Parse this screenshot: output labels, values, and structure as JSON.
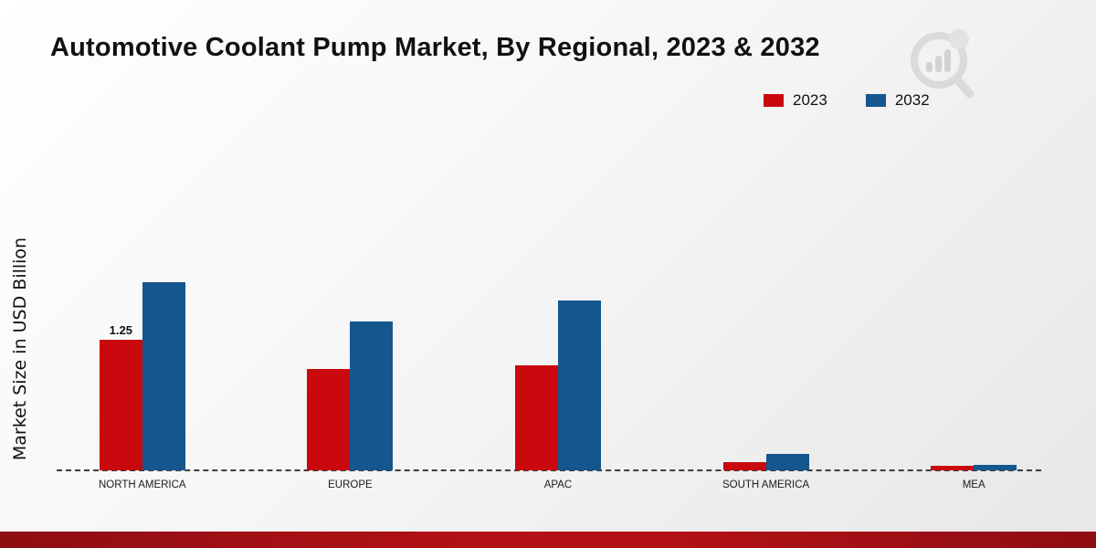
{
  "header": {
    "title": "Automotive Coolant Pump Market, By Regional, 2023 & 2032"
  },
  "legend": {
    "items": [
      {
        "label": "2023",
        "color": "#c9090e"
      },
      {
        "label": "2032",
        "color": "#15568f"
      }
    ]
  },
  "chart_data": {
    "type": "bar",
    "title": "Automotive Coolant Pump Market, By Regional, 2023 & 2032",
    "ylabel": "Market Size in USD Billion",
    "xlabel": "",
    "categories": [
      "NORTH AMERICA",
      "EUROPE",
      "APAC",
      "SOUTH AMERICA",
      "MEA"
    ],
    "series": [
      {
        "name": "2023",
        "color": "#c9090e",
        "values": [
          1.25,
          0.97,
          1.01,
          0.08,
          0.04
        ]
      },
      {
        "name": "2032",
        "color": "#15568f",
        "values": [
          1.81,
          1.43,
          1.63,
          0.16,
          0.05
        ]
      }
    ],
    "annotations": [
      {
        "category": "NORTH AMERICA",
        "series": "2023",
        "text": "1.25"
      }
    ],
    "ylim": [
      0,
      2.2
    ],
    "grid": false,
    "baseline_style": "dashed",
    "legend_position": "top-right"
  }
}
